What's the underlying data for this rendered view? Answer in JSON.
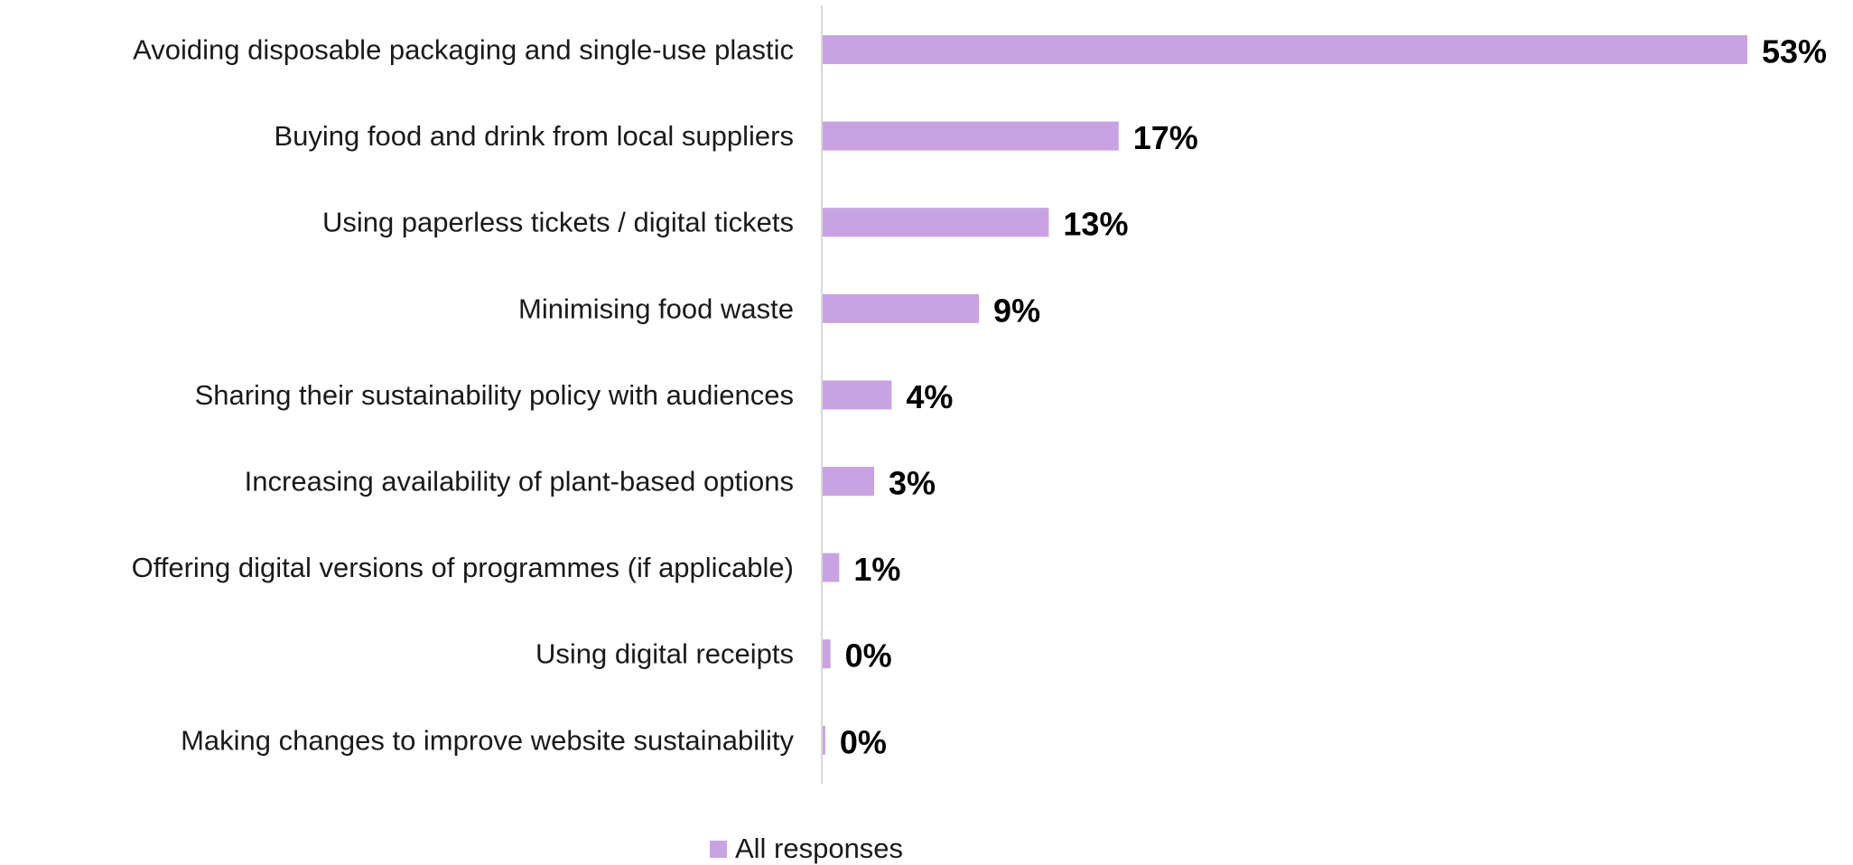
{
  "chart_data": {
    "type": "bar",
    "orientation": "horizontal",
    "categories": [
      "Avoiding disposable packaging and single-use plastic",
      "Buying food and drink from local suppliers",
      "Using paperless tickets / digital tickets",
      "Minimising food waste",
      "Sharing their sustainability policy with audiences",
      "Increasing availability of plant-based options",
      "Offering digital versions of programmes (if applicable)",
      "Using digital receipts",
      "Making changes to improve website sustainability"
    ],
    "series": [
      {
        "name": "All responses",
        "values": [
          53,
          17,
          13,
          9,
          4,
          3,
          1,
          0.5,
          0.2
        ],
        "labels": [
          "53%",
          "17%",
          "13%",
          "9%",
          "4%",
          "3%",
          "1%",
          "0%",
          "0%"
        ],
        "color": "#c8a2e2"
      }
    ],
    "xlim": [
      0,
      53
    ],
    "legend": {
      "position": "bottom",
      "label": "All responses"
    },
    "grid": false,
    "axis_color": "#d9d9d9"
  }
}
